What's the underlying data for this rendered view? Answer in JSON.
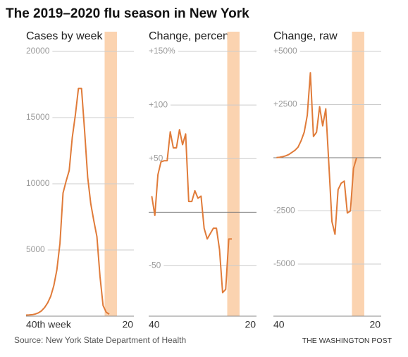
{
  "title": "The 2019–2020 flu season in New York",
  "source": "Source: New York State Department of Health",
  "credit": "THE WASHINGTON POST",
  "chart_data": [
    {
      "type": "line",
      "subtitle": "Cases by week",
      "color": "#e07b39",
      "highlight": [
        25.5,
        29.5
      ],
      "highlight_color": "#fbd3b0",
      "grid": true,
      "x": [
        0,
        1,
        2,
        3,
        4,
        5,
        6,
        7,
        8,
        9,
        10,
        11,
        12,
        13,
        14,
        15,
        16,
        17,
        18,
        19,
        20,
        21,
        22,
        23,
        24,
        25,
        26,
        27
      ],
      "values": [
        80,
        90,
        110,
        160,
        250,
        400,
        650,
        1000,
        1500,
        2300,
        3500,
        5500,
        9300,
        10200,
        11000,
        13500,
        15200,
        17200,
        17200,
        14000,
        10500,
        8500,
        7200,
        6000,
        3000,
        800,
        300,
        150
      ],
      "xlim": [
        0,
        35
      ],
      "xticks": [
        {
          "value": 0,
          "label": "40th week"
        },
        {
          "value": 33,
          "label": "20"
        }
      ],
      "ylim": [
        0,
        20000
      ],
      "yticks": [
        5000,
        10000,
        15000,
        20000
      ]
    },
    {
      "type": "line",
      "subtitle": "Change, percent",
      "color": "#e07b39",
      "highlight": [
        25.5,
        29.5
      ],
      "highlight_color": "#fbd3b0",
      "grid": true,
      "zero_line": true,
      "x": [
        1,
        2,
        3,
        4,
        5,
        6,
        7,
        8,
        9,
        10,
        11,
        12,
        13,
        14,
        15,
        16,
        17,
        18,
        19,
        20,
        21,
        22,
        23,
        24,
        25,
        26,
        27
      ],
      "values": [
        15,
        -3,
        35,
        47,
        48,
        48,
        75,
        60,
        60,
        77,
        63,
        73,
        10,
        10,
        20,
        13,
        15,
        -15,
        -25,
        -20,
        -15,
        -15,
        -35,
        -75,
        -72,
        -25,
        -25
      ],
      "xlim": [
        0,
        35
      ],
      "xticks": [
        {
          "value": 0,
          "label": "40"
        },
        {
          "value": 33,
          "label": "20"
        }
      ],
      "ylim": [
        -97,
        150
      ],
      "yticks": [
        {
          "value": -50,
          "label": "-50"
        },
        {
          "value": 50,
          "label": "+50"
        },
        {
          "value": 100,
          "label": "+100"
        },
        {
          "value": 150,
          "label": "+150%"
        }
      ]
    },
    {
      "type": "line",
      "subtitle": "Change, raw",
      "color": "#e07b39",
      "highlight": [
        25.5,
        29.5
      ],
      "highlight_color": "#fbd3b0",
      "grid": true,
      "zero_line": true,
      "x": [
        1,
        2,
        3,
        4,
        5,
        6,
        7,
        8,
        9,
        10,
        11,
        12,
        13,
        14,
        15,
        16,
        17,
        18,
        19,
        20,
        21,
        22,
        23,
        24,
        25,
        26,
        27
      ],
      "values": [
        10,
        20,
        50,
        90,
        150,
        250,
        350,
        500,
        800,
        1200,
        2000,
        4000,
        1000,
        1200,
        2400,
        1500,
        2300,
        -300,
        -3000,
        -3600,
        -1500,
        -1200,
        -1100,
        -2600,
        -2500,
        -500,
        0
      ],
      "xlim": [
        0,
        35
      ],
      "xticks": [
        {
          "value": 0,
          "label": "40"
        },
        {
          "value": 33,
          "label": "20"
        }
      ],
      "ylim": [
        -7450,
        5000
      ],
      "yticks": [
        {
          "value": -5000,
          "label": "-5000"
        },
        {
          "value": -2500,
          "label": "-2500"
        },
        {
          "value": 2500,
          "label": "+2500"
        },
        {
          "value": 5000,
          "label": "+5000"
        }
      ]
    }
  ]
}
